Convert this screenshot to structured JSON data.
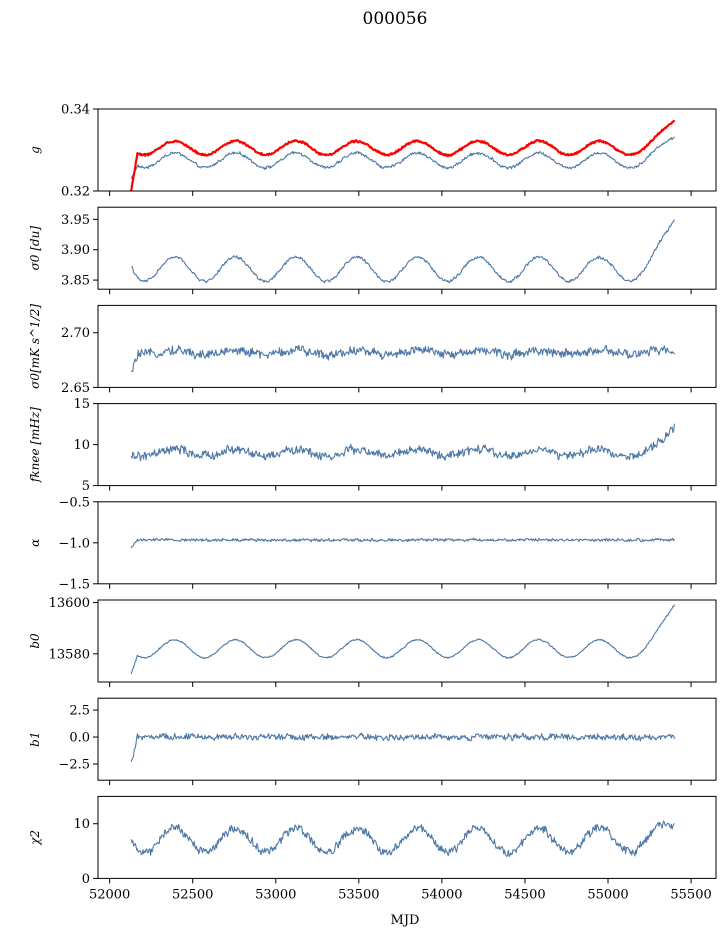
{
  "title": "000056",
  "chart_data": {
    "type": "line",
    "title": "000056",
    "xlabel": "MJD",
    "xlim": [
      51930,
      55650
    ],
    "xticks": [
      52000,
      52500,
      53000,
      53500,
      54000,
      54500,
      55000,
      55500
    ],
    "x_start": 52130,
    "x_end": 55400,
    "series_color": "#4e79a7",
    "highlight_color": "#ff0000",
    "panels": [
      {
        "ylabel": "g",
        "ylim": [
          0.32,
          0.34
        ],
        "yticks": [
          0.32,
          0.34
        ],
        "ytick_labels": [
          "0.32",
          "0.34"
        ],
        "series": [
          {
            "name": "",
            "color": "#4e79a7",
            "base": 0.3275,
            "seasonal": 0.0018,
            "noise": 0.0006,
            "ramp_end": 0.0055,
            "start_dip": -0.004
          },
          {
            "name": "",
            "color": "#ff0000",
            "base": 0.3305,
            "seasonal": 0.0017,
            "noise": 0.0004,
            "ramp_end": 0.0065,
            "start_dip": -0.01
          }
        ]
      },
      {
        "ylabel": "σ0 [du]",
        "ylim": [
          3.835,
          3.97
        ],
        "yticks": [
          3.85,
          3.9,
          3.95
        ],
        "ytick_labels": [
          "3.85",
          "3.90",
          "3.95"
        ],
        "series": [
          {
            "name": "",
            "color": "#4e79a7",
            "base": 3.868,
            "seasonal": 0.02,
            "noise": 0.004,
            "ramp_end": 0.08,
            "start_dip": 0.01
          }
        ]
      },
      {
        "ylabel": "σ0[mK s^1/2]",
        "ylim": [
          2.65,
          2.725
        ],
        "yticks": [
          2.65,
          2.7
        ],
        "ytick_labels": [
          "2.65",
          "2.70"
        ],
        "series": [
          {
            "name": "",
            "color": "#4e79a7",
            "base": 2.682,
            "seasonal": 0.002,
            "noise": 0.007,
            "ramp_end": 0.0,
            "start_dip": -0.02
          }
        ]
      },
      {
        "ylabel": "fknee [mHz]",
        "ylim": [
          5,
          15
        ],
        "yticks": [
          5,
          10,
          15
        ],
        "ytick_labels": [
          "5",
          "10",
          "15"
        ],
        "series": [
          {
            "name": "",
            "color": "#4e79a7",
            "base": 9.0,
            "seasonal": 0.4,
            "noise": 0.9,
            "ramp_end": 3.2,
            "start_dip": -0.5
          }
        ]
      },
      {
        "ylabel": "α",
        "ylim": [
          -1.5,
          -0.5
        ],
        "yticks": [
          -1.5,
          -1.0,
          -0.5
        ],
        "ytick_labels": [
          "−1.5",
          "−1.0",
          "−0.5"
        ],
        "series": [
          {
            "name": "",
            "color": "#4e79a7",
            "base": -0.965,
            "seasonal": 0.0,
            "noise": 0.03,
            "ramp_end": 0.0,
            "start_dip": -0.1
          }
        ]
      },
      {
        "ylabel": "b0",
        "ylim": [
          13569,
          13601
        ],
        "yticks": [
          13580,
          13600
        ],
        "ytick_labels": [
          "13580",
          "13600"
        ],
        "series": [
          {
            "name": "",
            "color": "#4e79a7",
            "base": 13582,
            "seasonal": 3.5,
            "noise": 0.5,
            "ramp_end": 17,
            "start_dip": -9
          }
        ]
      },
      {
        "ylabel": "b1",
        "ylim": [
          -4.0,
          3.6
        ],
        "yticks": [
          -2.5,
          0.0,
          2.5
        ],
        "ytick_labels": [
          "−2.5",
          "0.0",
          "2.5"
        ],
        "series": [
          {
            "name": "",
            "color": "#4e79a7",
            "base": 0.0,
            "seasonal": 0.0,
            "noise": 0.5,
            "ramp_end": 0.0,
            "start_dip": -2.6
          }
        ]
      },
      {
        "ylabel": "χ2",
        "ylim": [
          0,
          15
        ],
        "yticks": [
          0,
          10
        ],
        "ytick_labels": [
          "0",
          "10"
        ],
        "series": [
          {
            "name": "",
            "color": "#4e79a7",
            "base": 7.0,
            "seasonal": 2.2,
            "noise": 1.3,
            "ramp_end": 2.0,
            "start_dip": 0
          }
        ]
      }
    ]
  }
}
